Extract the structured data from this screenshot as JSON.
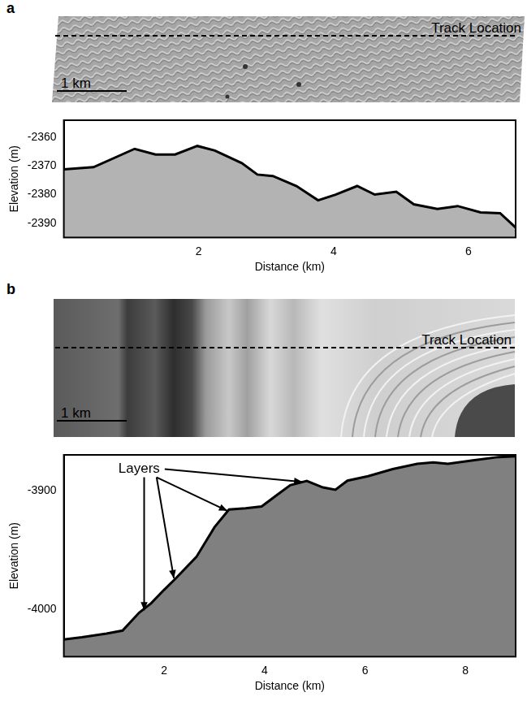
{
  "chart_data": [
    {
      "panel": "a",
      "type": "area",
      "image_annotations": [
        "Track Location",
        "1 km"
      ],
      "x_label": "Distance (km)",
      "y_label": "Elevation (m)",
      "x": [
        0,
        0.44,
        1.05,
        1.36,
        1.65,
        1.98,
        2.24,
        2.64,
        2.87,
        3.1,
        3.45,
        3.77,
        4.03,
        4.35,
        4.61,
        4.93,
        5.19,
        5.54,
        5.84,
        6.18,
        6.47,
        6.7
      ],
      "values": [
        -2371.2,
        -2370.4,
        -2364,
        -2366,
        -2366,
        -2363,
        -2364.6,
        -2369,
        -2373,
        -2373.5,
        -2377,
        -2382,
        -2380,
        -2377,
        -2380,
        -2379,
        -2383.4,
        -2385,
        -2384,
        -2386.2,
        -2386.5,
        -2391.5
      ],
      "color": "#b3b3b3",
      "xlim": [
        0,
        6.7
      ],
      "xticks": [
        2,
        4,
        6
      ],
      "ylim": [
        -2395,
        -2354
      ],
      "yticks": [
        -2390,
        -2380,
        -2370,
        -2360
      ],
      "grid": false
    },
    {
      "panel": "b",
      "type": "area",
      "image_annotations": [
        "Track Location",
        "1 km"
      ],
      "x_label": "Distance (km)",
      "y_label": "Elevation (m)",
      "x": [
        0,
        0.36,
        0.85,
        1.17,
        1.5,
        1.74,
        1.99,
        2.23,
        2.64,
        3.0,
        3.29,
        3.62,
        3.94,
        4.27,
        4.51,
        4.84,
        5.16,
        5.41,
        5.65,
        6.06,
        6.55,
        7.04,
        7.36,
        7.65,
        8.18,
        8.66,
        9.0
      ],
      "values": [
        -4025.6,
        -4023.7,
        -4020.5,
        -4018,
        -4003,
        -3995,
        -3984,
        -3974,
        -3956,
        -3931,
        -3916,
        -3915,
        -3913.5,
        -3903,
        -3895.5,
        -3892,
        -3897.4,
        -3899.4,
        -3891.7,
        -3888,
        -3882,
        -3877.6,
        -3876.3,
        -3877.6,
        -3874.4,
        -3871.8,
        -3871.2
      ],
      "color": "#808080",
      "xlim": [
        0,
        9
      ],
      "xticks": [
        2,
        4,
        6,
        8
      ],
      "ylim": [
        -4040,
        -3870
      ],
      "yticks": [
        -4000,
        -3900
      ],
      "grid": false,
      "annotations": [
        {
          "text": "Layers",
          "x": 1.5,
          "y": -3882,
          "arrows_to": [
            [
              1.6,
              -4003
            ],
            [
              2.2,
              -3976
            ],
            [
              3.3,
              -3918
            ],
            [
              4.8,
              -3893
            ]
          ]
        }
      ]
    }
  ]
}
